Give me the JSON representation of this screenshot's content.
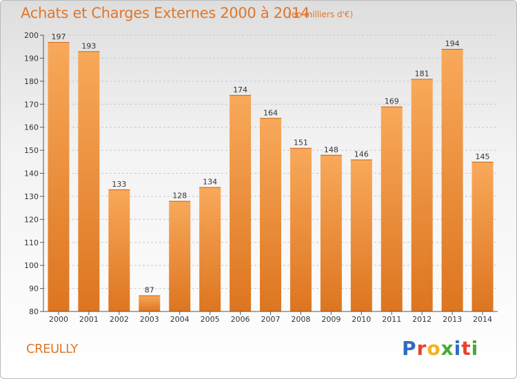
{
  "header": {
    "title": "Achats et Charges Externes 2000 à 2014",
    "subtitle": "(en milliers d'€)"
  },
  "footer": {
    "place": "CREULLY",
    "logo": "Proxiti",
    "logo_colors": [
      "#2f6cc0",
      "#e8432d",
      "#f2b31b",
      "#4aa83b",
      "#2f6cc0",
      "#e8432d",
      "#4aa83b"
    ]
  },
  "colors": {
    "bar_light": "#f8a95a",
    "bar_dark": "#dd7520",
    "accent": "#e0762a",
    "grid": "#c8c8c8"
  },
  "chart_data": {
    "type": "bar",
    "title": "Achats et Charges Externes 2000 à 2014",
    "subtitle": "(en milliers d'€)",
    "categories": [
      "2000",
      "2001",
      "2002",
      "2003",
      "2004",
      "2005",
      "2006",
      "2007",
      "2008",
      "2009",
      "2010",
      "2011",
      "2012",
      "2013",
      "2014"
    ],
    "values": [
      197,
      193,
      133,
      87,
      128,
      134,
      174,
      164,
      151,
      148,
      146,
      169,
      181,
      194,
      145
    ],
    "ylim": [
      80,
      200
    ],
    "yticks": [
      80,
      90,
      100,
      110,
      120,
      130,
      140,
      150,
      160,
      170,
      180,
      190,
      200
    ],
    "grid": true,
    "xlabel": "",
    "ylabel": ""
  }
}
